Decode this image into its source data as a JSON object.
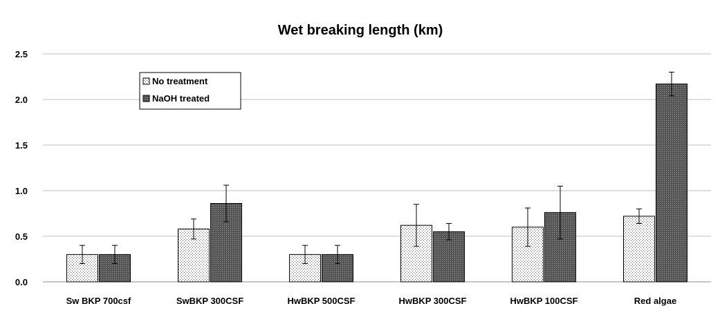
{
  "chart_data": {
    "type": "bar",
    "title": "Wet breaking length (km)",
    "xlabel": "",
    "ylabel": "",
    "ylim": [
      0,
      2.5
    ],
    "yticks": [
      0.0,
      0.5,
      1.0,
      1.5,
      2.0,
      2.5
    ],
    "ytick_labels": [
      "0.0",
      "0.5",
      "1.0",
      "1.5",
      "2.0",
      "2.5"
    ],
    "grid": true,
    "legend_position": "top-left",
    "categories": [
      "Sw BKP 700csf",
      "SwBKP 300CSF",
      "HwBKP 500CSF",
      "HwBKP 300CSF",
      "HwBKP 100CSF",
      "Red algae"
    ],
    "series": [
      {
        "name": "No treatment",
        "pattern": "dots",
        "values": [
          0.3,
          0.58,
          0.3,
          0.62,
          0.6,
          0.72
        ],
        "errors": [
          0.1,
          0.11,
          0.1,
          0.23,
          0.21,
          0.08
        ]
      },
      {
        "name": "NaOH treated",
        "pattern": "dense-hatch",
        "values": [
          0.3,
          0.86,
          0.3,
          0.55,
          0.76,
          2.17
        ],
        "errors": [
          0.1,
          0.2,
          0.1,
          0.09,
          0.29,
          0.13
        ]
      }
    ]
  }
}
